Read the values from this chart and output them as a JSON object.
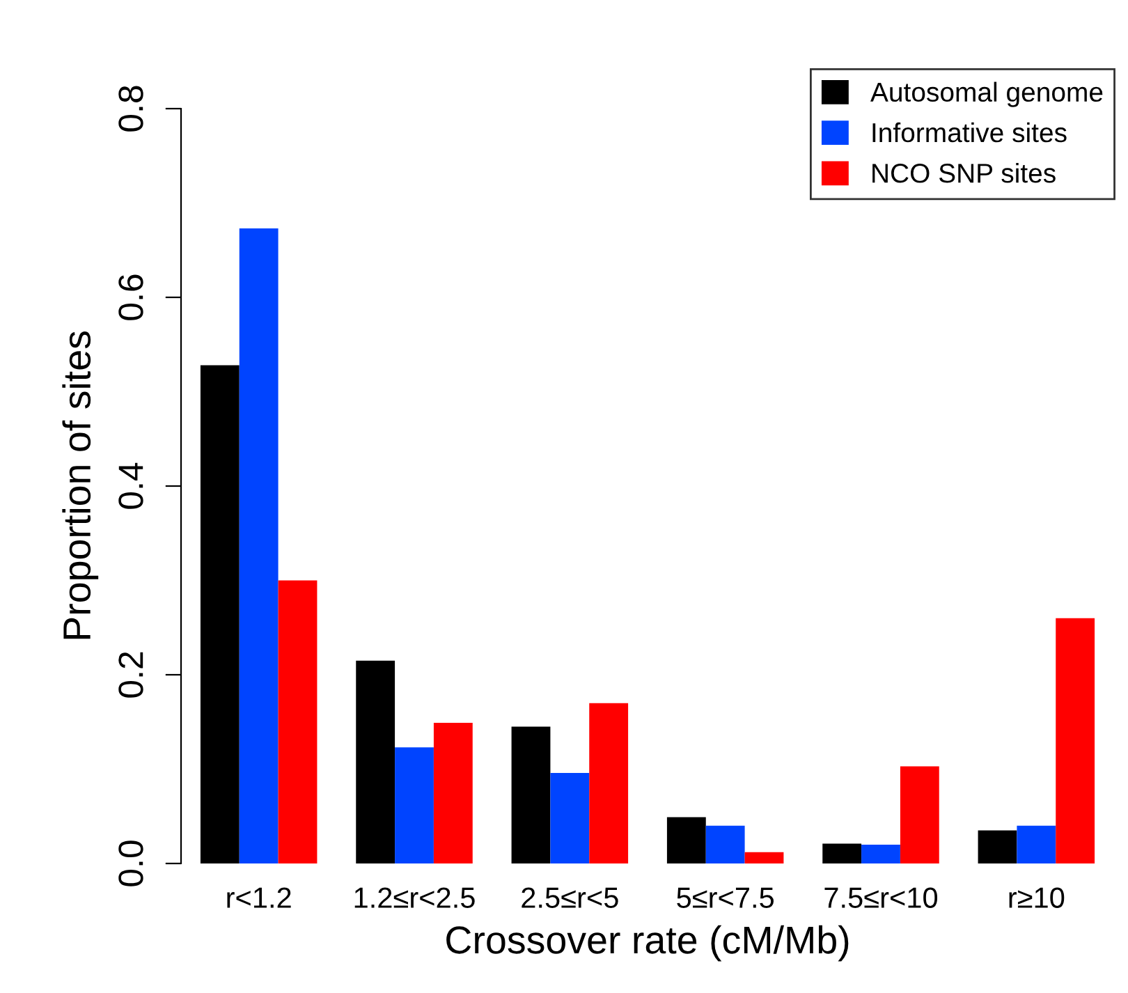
{
  "chart_data": {
    "type": "bar",
    "xlabel": "Crossover rate (cM/Mb)",
    "ylabel": "Proportion of sites",
    "categories": [
      "r<1.2",
      "1.2≤r<2.5",
      "2.5≤r<5",
      "5≤r<7.5",
      "7.5≤r<10",
      "r≥10"
    ],
    "series": [
      {
        "name": "Autosomal genome",
        "color": "#000000",
        "values": [
          0.528,
          0.215,
          0.145,
          0.049,
          0.021,
          0.035
        ]
      },
      {
        "name": "Informative sites",
        "color": "#0044ff",
        "values": [
          0.673,
          0.123,
          0.096,
          0.04,
          0.02,
          0.04
        ]
      },
      {
        "name": "NCO SNP sites",
        "color": "#ff0000",
        "values": [
          0.3,
          0.149,
          0.17,
          0.012,
          0.103,
          0.26
        ]
      }
    ],
    "ylim": [
      0,
      0.8
    ],
    "yticks": [
      {
        "value": 0,
        "label": "0.0"
      },
      0.2,
      0.4,
      0.6,
      0.8
    ],
    "grid": false,
    "legend": "top right"
  }
}
